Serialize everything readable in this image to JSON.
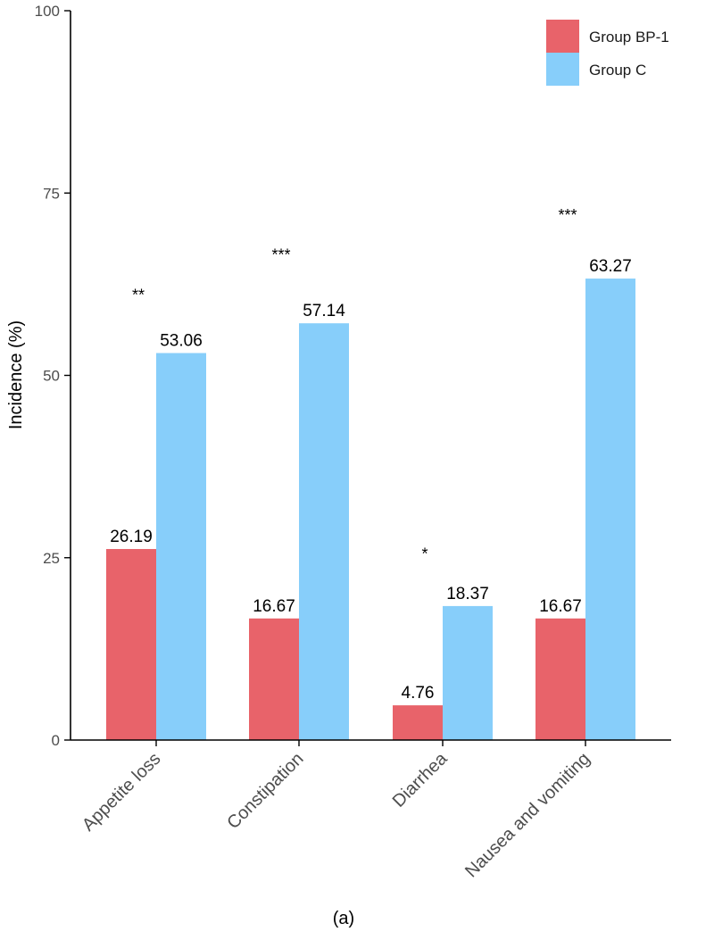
{
  "chart_data": {
    "type": "bar",
    "title": "",
    "xlabel": "",
    "ylabel": "Incidence (%)",
    "ylim": [
      0,
      100
    ],
    "yticks": [
      0,
      25,
      50,
      75,
      100
    ],
    "grid": false,
    "legend_position": "top-right",
    "categories": [
      "Appetite loss",
      "Constipation",
      "Diarrhea",
      "Nausea and vomiting"
    ],
    "series": [
      {
        "name": "Group BP-1",
        "color": "#E8636A",
        "values": [
          26.19,
          16.67,
          4.76,
          16.67
        ],
        "labels": [
          "26.19",
          "16.67",
          "4.76",
          "16.67"
        ]
      },
      {
        "name": "Group C",
        "color": "#87CEFA",
        "values": [
          53.06,
          57.14,
          18.37,
          63.27
        ],
        "labels": [
          "53.06",
          "57.14",
          "18.37",
          "63.27"
        ]
      }
    ],
    "annotations": [
      {
        "category": "Appetite loss",
        "text": "**",
        "y": 61
      },
      {
        "category": "Constipation",
        "text": "***",
        "y": 66.5
      },
      {
        "category": "Diarrhea",
        "text": "*",
        "y": 25.5
      },
      {
        "category": "Nausea and vomiting",
        "text": "***",
        "y": 72
      }
    ]
  },
  "caption": "(a)"
}
